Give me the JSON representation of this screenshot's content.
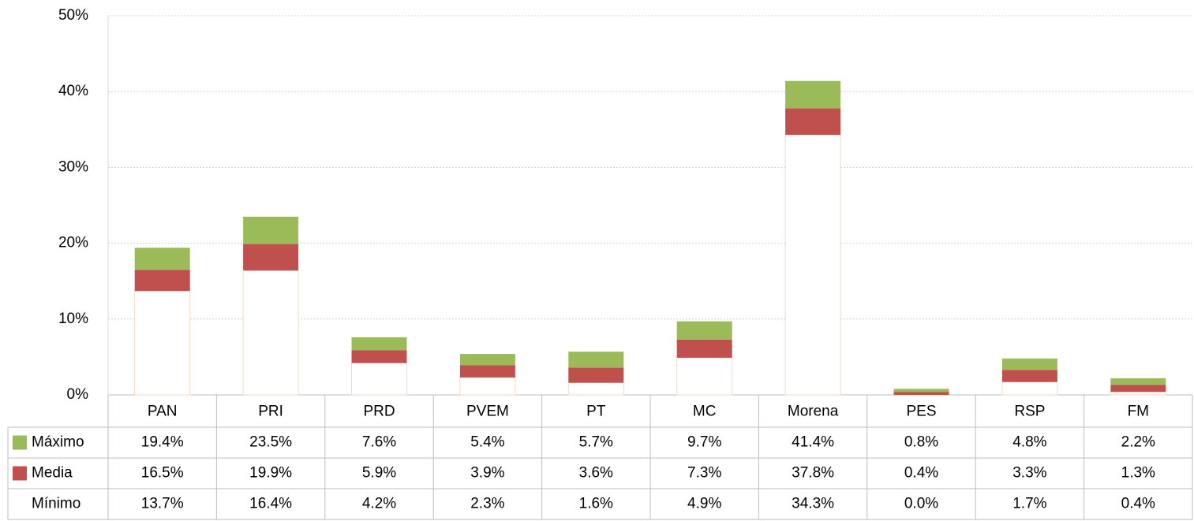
{
  "chart_data": {
    "type": "bar",
    "categories": [
      "PAN",
      "PRI",
      "PRD",
      "PVEM",
      "PT",
      "MC",
      "Morena",
      "PES",
      "RSP",
      "FM"
    ],
    "series": [
      {
        "name": "Máximo",
        "color": "#9bbb59",
        "values": [
          19.4,
          23.5,
          7.6,
          5.4,
          5.7,
          9.7,
          41.4,
          0.8,
          4.8,
          2.2
        ],
        "value_labels": [
          "19.4%",
          "23.5%",
          "7.6%",
          "5.4%",
          "5.7%",
          "9.7%",
          "41.4%",
          "0.8%",
          "4.8%",
          "2.2%"
        ]
      },
      {
        "name": "Media",
        "color": "#c0504d",
        "values": [
          16.5,
          19.9,
          5.9,
          3.9,
          3.6,
          7.3,
          37.8,
          0.4,
          3.3,
          1.3
        ],
        "value_labels": [
          "16.5%",
          "19.9%",
          "5.9%",
          "3.9%",
          "3.6%",
          "7.3%",
          "37.8%",
          "0.4%",
          "3.3%",
          "1.3%"
        ]
      },
      {
        "name": "Mínimo",
        "color": "#ffffff",
        "values": [
          13.7,
          16.4,
          4.2,
          2.3,
          1.6,
          4.9,
          34.3,
          0.0,
          1.7,
          0.4
        ],
        "value_labels": [
          "13.7%",
          "16.4%",
          "4.2%",
          "2.3%",
          "1.6%",
          "4.9%",
          "34.3%",
          "0.0%",
          "1.7%",
          "0.4%"
        ]
      }
    ],
    "ylim": [
      0,
      50
    ],
    "yticks": [
      {
        "value": 0,
        "label": "0%"
      },
      {
        "value": 10,
        "label": "10%"
      },
      {
        "value": 20,
        "label": "20%"
      },
      {
        "value": 30,
        "label": "30%"
      },
      {
        "value": 40,
        "label": "40%"
      },
      {
        "value": 50,
        "label": "50%"
      }
    ],
    "grid": true
  }
}
